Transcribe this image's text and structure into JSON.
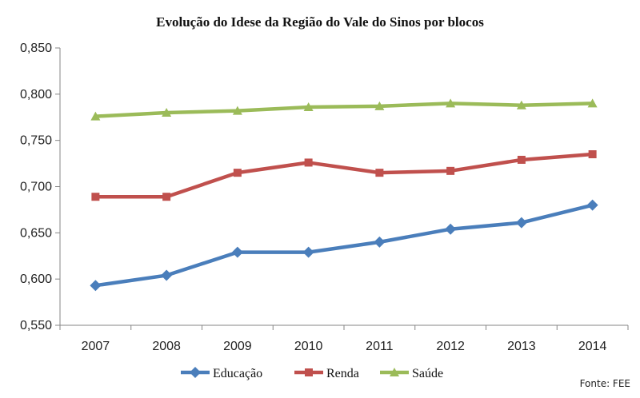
{
  "chart_data": {
    "type": "line",
    "title": "Evolução do Idese da Região do Vale do Sinos por blocos",
    "categories": [
      "2007",
      "2008",
      "2009",
      "2010",
      "2011",
      "2012",
      "2013",
      "2014"
    ],
    "ylim": [
      0.55,
      0.85
    ],
    "y_ticks": [
      {
        "value": 0.85,
        "label": "0,850"
      },
      {
        "value": 0.8,
        "label": "0,800"
      },
      {
        "value": 0.75,
        "label": "0,750"
      },
      {
        "value": 0.7,
        "label": "0,700"
      },
      {
        "value": 0.65,
        "label": "0,650"
      },
      {
        "value": 0.6,
        "label": "0,600"
      },
      {
        "value": 0.55,
        "label": "0,550"
      }
    ],
    "series": [
      {
        "name": "Educação",
        "color": "#4a7ebb",
        "marker": "diamond",
        "values": [
          0.593,
          0.604,
          0.629,
          0.629,
          0.64,
          0.654,
          0.661,
          0.68
        ]
      },
      {
        "name": "Renda",
        "color": "#c0504d",
        "marker": "square",
        "values": [
          0.689,
          0.689,
          0.715,
          0.726,
          0.715,
          0.717,
          0.729,
          0.735
        ]
      },
      {
        "name": "Saúde",
        "color": "#9bbb59",
        "marker": "triangle",
        "values": [
          0.776,
          0.78,
          0.782,
          0.786,
          0.787,
          0.79,
          0.788,
          0.79
        ]
      }
    ],
    "grid": false,
    "legend_position": "bottom"
  },
  "source_note": "Fonte: FEE"
}
